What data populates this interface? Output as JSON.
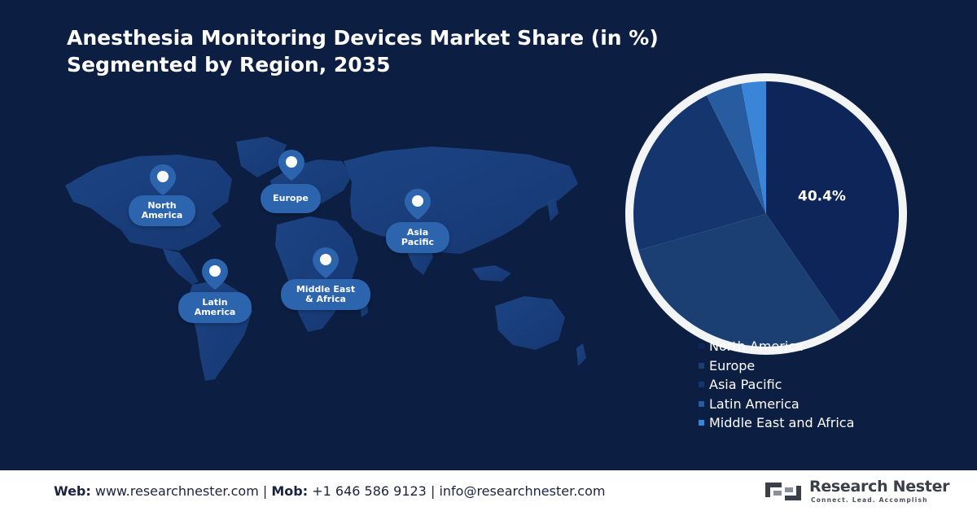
{
  "title": {
    "line1": "Anesthesia Monitoring Devices Market Share (in %)",
    "line2": "Segmented by Region, 2035"
  },
  "map": {
    "region_labels": {
      "north_america": [
        "North",
        "America"
      ],
      "europe": [
        "Europe"
      ],
      "asia_pacific": [
        "Asia",
        "Pacific"
      ],
      "latin_america": [
        "Latin",
        "America"
      ],
      "middle_east_africa": [
        "Middle East",
        "& Africa"
      ]
    }
  },
  "chart_data": {
    "type": "pie",
    "categories": [
      "North America",
      "Europe",
      "Asia Pacific",
      "Latin America",
      "Middle East and Africa"
    ],
    "values": [
      40.4,
      30.2,
      22.0,
      4.4,
      3.0
    ],
    "colors": [
      "#0d2558",
      "#1b3e73",
      "#15356e",
      "#275da0",
      "#3b85d8"
    ],
    "data_labels": [
      "40.4%",
      "",
      "",
      "",
      ""
    ],
    "legend_position": "bottom-right"
  },
  "footer": {
    "web_label": "Web:",
    "web_value": "www.researchnester.com",
    "sep1": "|",
    "mob_label": "Mob:",
    "mob_value": "+1 646 586 9123",
    "sep2": "|",
    "email_value": "info@researchnester.com"
  },
  "logo": {
    "name": "Research Nester",
    "tagline": "Connect. Lead. Accomplish"
  }
}
